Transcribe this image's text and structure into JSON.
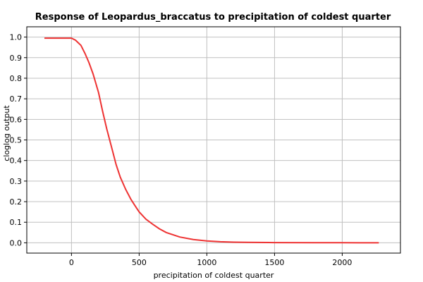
{
  "chart_data": {
    "type": "line",
    "title": "Response of Leopardus_braccatus to precipitation of coldest quarter",
    "xlabel": "precipitation of coldest quarter",
    "ylabel": "cloglog output",
    "xlim": [
      -330,
      2430
    ],
    "ylim": [
      -0.05,
      1.05
    ],
    "xticks": [
      0,
      500,
      1000,
      1500,
      2000
    ],
    "yticks": [
      0.0,
      0.1,
      0.2,
      0.3,
      0.4,
      0.5,
      0.6,
      0.7,
      0.8,
      0.9,
      1.0
    ],
    "grid": true,
    "series": [
      {
        "color": "#ee3333",
        "x": [
          -200,
          -100,
          0,
          30,
          70,
          100,
          130,
          160,
          200,
          230,
          260,
          300,
          330,
          360,
          400,
          440,
          480,
          500,
          550,
          600,
          650,
          700,
          800,
          900,
          1000,
          1100,
          1200,
          1300,
          1500,
          1800,
          2000,
          2270
        ],
        "y": [
          0.995,
          0.995,
          0.995,
          0.985,
          0.96,
          0.92,
          0.875,
          0.82,
          0.73,
          0.64,
          0.555,
          0.455,
          0.38,
          0.32,
          0.26,
          0.21,
          0.17,
          0.15,
          0.115,
          0.09,
          0.068,
          0.05,
          0.028,
          0.016,
          0.009,
          0.005,
          0.003,
          0.002,
          0.001,
          0.0005,
          0.0003,
          0.0002
        ]
      }
    ]
  }
}
